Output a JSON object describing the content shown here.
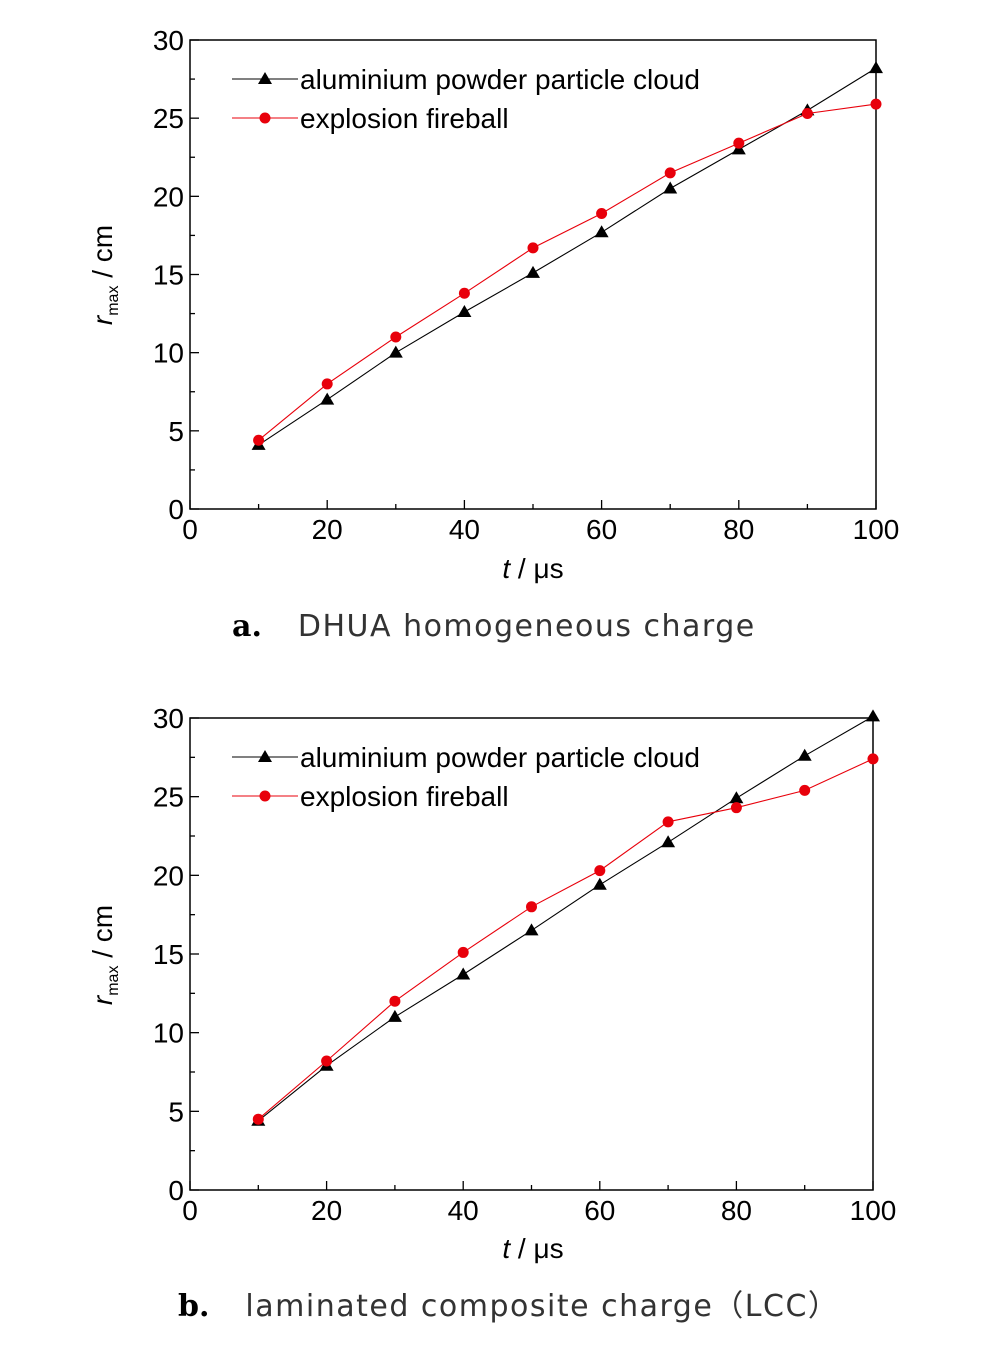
{
  "chart_data": [
    {
      "type": "line",
      "caption_letter": "a.",
      "caption_text": "DHUA homogeneous charge",
      "xlabel_var": "t",
      "xlabel_unit": " / μs",
      "ylabel_var": "r",
      "ylabel_sub": "max",
      "ylabel_unit": " / cm",
      "xlim": [
        0,
        100
      ],
      "ylim": [
        0,
        30
      ],
      "xticks": [
        0,
        20,
        40,
        60,
        80,
        100
      ],
      "yticks": [
        0,
        5,
        10,
        15,
        20,
        25,
        30
      ],
      "legend_position": "top-left",
      "series": [
        {
          "name": "aluminium powder particle cloud",
          "marker": "triangle",
          "color": "#000000",
          "x": [
            10,
            20,
            30,
            40,
            50,
            60,
            70,
            80,
            90,
            100
          ],
          "y": [
            4.1,
            7.0,
            10.0,
            12.6,
            15.1,
            17.7,
            20.5,
            23.0,
            25.5,
            28.2
          ]
        },
        {
          "name": "explosion fireball",
          "marker": "circle",
          "color": "#e8000b",
          "x": [
            10,
            20,
            30,
            40,
            50,
            60,
            70,
            80,
            90,
            100
          ],
          "y": [
            4.4,
            8.0,
            11.0,
            13.8,
            16.7,
            18.9,
            21.5,
            23.4,
            25.3,
            25.9
          ]
        }
      ]
    },
    {
      "type": "line",
      "caption_letter": "b.",
      "caption_text": "laminated composite charge（LCC）",
      "xlabel_var": "t",
      "xlabel_unit": " / μs",
      "ylabel_var": "r",
      "ylabel_sub": "max",
      "ylabel_unit": " / cm",
      "xlim": [
        0,
        100
      ],
      "ylim": [
        0,
        30
      ],
      "xticks": [
        0,
        20,
        40,
        60,
        80,
        100
      ],
      "yticks": [
        0,
        5,
        10,
        15,
        20,
        25,
        30
      ],
      "legend_position": "top-left",
      "series": [
        {
          "name": "aluminium powder particle cloud",
          "marker": "triangle",
          "color": "#000000",
          "x": [
            10,
            20,
            30,
            40,
            50,
            60,
            70,
            80,
            90,
            100
          ],
          "y": [
            4.4,
            7.9,
            11.0,
            13.7,
            16.5,
            19.4,
            22.1,
            24.9,
            27.6,
            30.1
          ]
        },
        {
          "name": "explosion fireball",
          "marker": "circle",
          "color": "#e8000b",
          "x": [
            10,
            20,
            30,
            40,
            50,
            60,
            70,
            80,
            90,
            100
          ],
          "y": [
            4.5,
            8.2,
            12.0,
            15.1,
            18.0,
            20.3,
            23.4,
            24.3,
            25.4,
            27.4
          ]
        }
      ]
    }
  ]
}
